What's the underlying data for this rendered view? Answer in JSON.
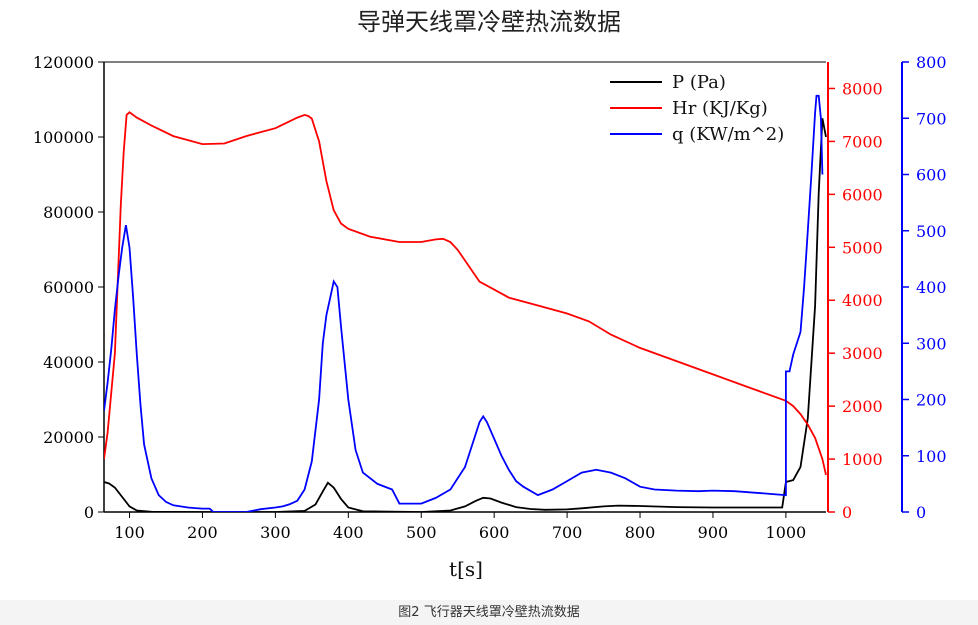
{
  "caption": "图2 飞行器天线罩冷壁热流数据",
  "chart_data": {
    "type": "line",
    "title": "导弹天线罩冷壁热流数据",
    "xlabel": "t[s]",
    "xlim": [
      65,
      1055
    ],
    "xticks": [
      100,
      200,
      300,
      400,
      500,
      600,
      700,
      800,
      900,
      1000
    ],
    "axes": {
      "left": {
        "ylim": [
          0,
          120000
        ],
        "ticks": [
          0,
          20000,
          40000,
          60000,
          80000,
          100000,
          120000
        ],
        "color": "#000000"
      },
      "right1": {
        "ylim": [
          0,
          8500
        ],
        "ticks": [
          0,
          1000,
          2000,
          3000,
          4000,
          5000,
          6000,
          7000,
          8000
        ],
        "color": "#ff0000"
      },
      "right2": {
        "ylim": [
          0,
          800
        ],
        "ticks": [
          0,
          100,
          200,
          300,
          400,
          500,
          600,
          700,
          800
        ],
        "color": "#0000ff"
      }
    },
    "legend_position": "top-right",
    "series": [
      {
        "name": "P  (Pa)",
        "axis": "left",
        "color": "#000000",
        "x": [
          65,
          72,
          80,
          90,
          100,
          110,
          130,
          200,
          300,
          340,
          355,
          365,
          372,
          380,
          390,
          400,
          420,
          500,
          540,
          560,
          575,
          585,
          595,
          610,
          630,
          650,
          670,
          700,
          720,
          750,
          770,
          800,
          850,
          900,
          950,
          995,
          1000,
          1010,
          1020,
          1030,
          1040,
          1045,
          1050,
          1055
        ],
        "y": [
          8000,
          7600,
          6500,
          4000,
          1500,
          400,
          50,
          0,
          0,
          300,
          2000,
          5500,
          7800,
          6500,
          3500,
          1200,
          200,
          0,
          400,
          1500,
          3000,
          3800,
          3600,
          2500,
          1300,
          800,
          600,
          700,
          1000,
          1500,
          1700,
          1600,
          1300,
          1200,
          1200,
          1200,
          8000,
          8500,
          12000,
          25000,
          55000,
          85000,
          105000,
          100000
        ]
      },
      {
        "name": "Hr  (KJ/Kg)",
        "axis": "right1",
        "color": "#ff0000",
        "x": [
          65,
          70,
          80,
          88,
          92,
          96,
          100,
          110,
          130,
          160,
          200,
          230,
          260,
          300,
          330,
          340,
          345,
          350,
          360,
          370,
          380,
          390,
          400,
          430,
          470,
          500,
          520,
          530,
          540,
          550,
          560,
          580,
          600,
          620,
          660,
          700,
          730,
          760,
          800,
          850,
          900,
          950,
          1000,
          1010,
          1020,
          1030,
          1040,
          1050,
          1055
        ],
        "y": [
          1000,
          1500,
          3000,
          5800,
          6800,
          7500,
          7550,
          7450,
          7300,
          7100,
          6950,
          6960,
          7100,
          7250,
          7450,
          7500,
          7480,
          7430,
          7000,
          6250,
          5700,
          5450,
          5350,
          5200,
          5100,
          5100,
          5150,
          5160,
          5100,
          4950,
          4750,
          4350,
          4200,
          4050,
          3900,
          3750,
          3600,
          3350,
          3100,
          2850,
          2600,
          2350,
          2100,
          2000,
          1850,
          1650,
          1400,
          1000,
          700
        ]
      },
      {
        "name": "q  (KW/m^2)",
        "axis": "right2",
        "color": "#0000ff",
        "x": [
          65,
          70,
          75,
          80,
          85,
          90,
          95,
          100,
          105,
          110,
          115,
          120,
          130,
          140,
          150,
          160,
          170,
          180,
          190,
          200,
          210,
          215,
          220,
          260,
          280,
          300,
          310,
          320,
          330,
          340,
          350,
          360,
          365,
          370,
          375,
          380,
          385,
          390,
          400,
          410,
          420,
          440,
          460,
          470,
          480,
          500,
          520,
          540,
          550,
          560,
          570,
          580,
          585,
          590,
          600,
          610,
          620,
          630,
          640,
          660,
          680,
          700,
          720,
          740,
          760,
          780,
          800,
          820,
          850,
          880,
          900,
          930,
          950,
          970,
          980,
          1000,
          1000,
          1005,
          1010,
          1020,
          1025,
          1030,
          1035,
          1040,
          1042,
          1045,
          1048,
          1050
        ],
        "y": [
          180,
          230,
          290,
          360,
          420,
          470,
          510,
          470,
          380,
          280,
          190,
          120,
          60,
          30,
          18,
          12,
          10,
          8,
          7,
          6,
          6,
          0,
          0,
          0,
          5,
          8,
          10,
          14,
          20,
          40,
          90,
          200,
          300,
          350,
          380,
          410,
          400,
          330,
          200,
          110,
          70,
          50,
          40,
          15,
          15,
          15,
          25,
          40,
          60,
          80,
          120,
          160,
          170,
          160,
          130,
          100,
          75,
          55,
          45,
          30,
          40,
          55,
          70,
          75,
          70,
          60,
          45,
          40,
          38,
          37,
          38,
          37,
          35,
          33,
          32,
          30,
          250,
          250,
          280,
          320,
          400,
          500,
          600,
          710,
          740,
          740,
          700,
          600
        ]
      }
    ]
  }
}
